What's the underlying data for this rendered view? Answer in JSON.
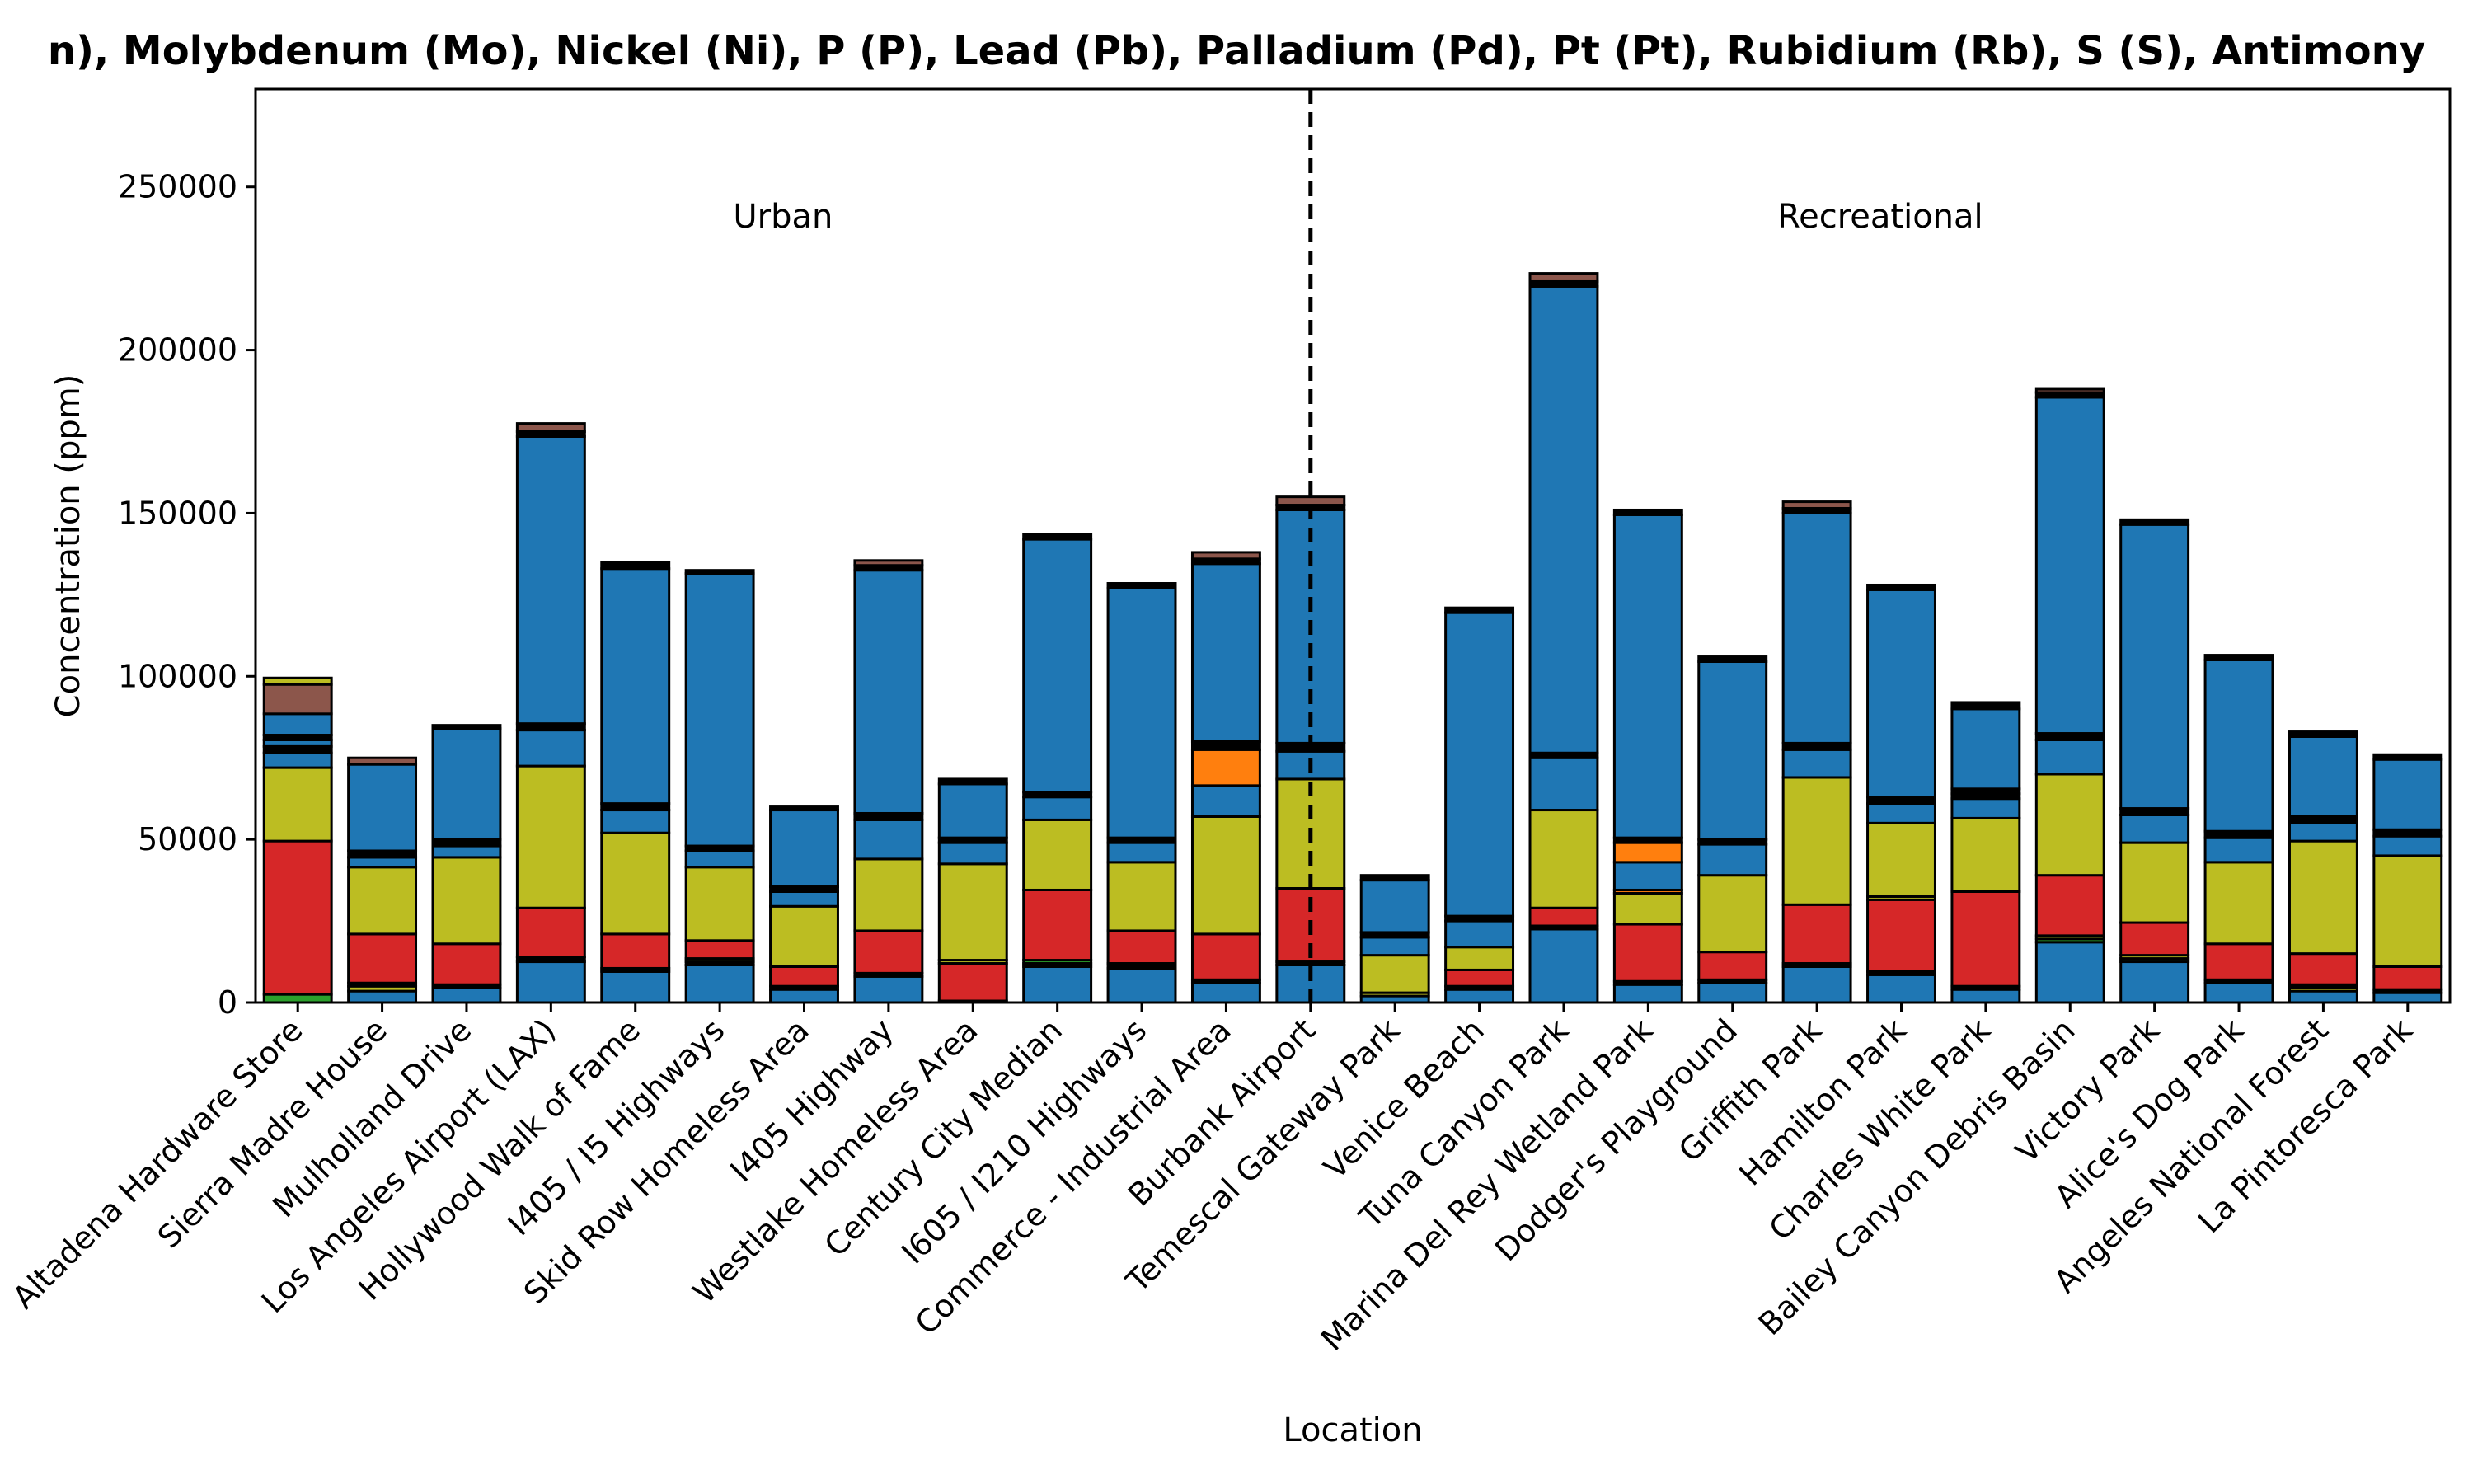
{
  "chart_data": {
    "type": "bar",
    "stacked": true,
    "title": "n), Molybdenum (Mo), Nickel (Ni), P (P), Lead (Pb), Palladium (Pd), Pt (Pt), Rubidium (Rb), S (S), Antimony",
    "xlabel": "Location",
    "ylabel": "Concentration (ppm)",
    "ylim": [
      0,
      280000
    ],
    "yticks": [
      0,
      50000,
      100000,
      150000,
      200000,
      250000
    ],
    "grid": false,
    "divider_after_index": 11,
    "region_labels": [
      "Urban",
      "Recreational"
    ],
    "colors": {
      "green": "#2ca02c",
      "blue": "#1f77b4",
      "red": "#d62728",
      "olive": "#bcbd22",
      "orange": "#ff7f0e",
      "brown": "#8c564b"
    },
    "categories": [
      "Altadena Hardware Store",
      "Sierra Madre House",
      "Mulholland Drive",
      "Los Angeles Airport (LAX)",
      "Hollywood Walk of Fame",
      "I405 / I5 Highways",
      "Skid Row Homeless Area",
      "I405 Highway",
      "Westlake Homeless Area",
      "Century City Median",
      "I605 / I210 Highways",
      "Commerce - Industrial Area",
      "Burbank Airport",
      "Temescal Gateway Park",
      "Venice Beach",
      "Tuna Canyon Park",
      "Marina Del Rey Wetland Park",
      "Dodger's Playground",
      "Griffith Park",
      "Hamilton Park",
      "Charles White Park",
      "Bailey Canyon Debris Basin",
      "Victory Park",
      "Alice's Dog Park",
      "Angeles National Forest",
      "La Pintoresca Park"
    ],
    "stacks": [
      [
        [
          "green",
          2500
        ],
        [
          "red",
          47000
        ],
        [
          "olive",
          22500
        ],
        [
          "blue",
          4500
        ],
        [
          "black",
          2000
        ],
        [
          "blue",
          2000
        ],
        [
          "black",
          1500
        ],
        [
          "blue",
          6500
        ],
        [
          "brown",
          9000
        ],
        [
          "olive",
          2000
        ]
      ],
      [
        [
          "blue",
          3500
        ],
        [
          "olive",
          1500
        ],
        [
          "black",
          1000
        ],
        [
          "red",
          15000
        ],
        [
          "olive",
          20500
        ],
        [
          "blue",
          3000
        ],
        [
          "black",
          2000
        ],
        [
          "blue",
          26500
        ],
        [
          "brown",
          2000
        ]
      ],
      [
        [
          "blue",
          4500
        ],
        [
          "black",
          1000
        ],
        [
          "red",
          12500
        ],
        [
          "olive",
          26500
        ],
        [
          "blue",
          3500
        ],
        [
          "black",
          2000
        ],
        [
          "blue",
          34000
        ],
        [
          "black",
          1000
        ]
      ],
      [
        [
          "blue",
          12500
        ],
        [
          "black",
          1500
        ],
        [
          "red",
          15000
        ],
        [
          "olive",
          43500
        ],
        [
          "blue",
          11000
        ],
        [
          "black",
          2000
        ],
        [
          "blue",
          88000
        ],
        [
          "black",
          1500
        ],
        [
          "brown",
          2500
        ]
      ],
      [
        [
          "blue",
          9500
        ],
        [
          "black",
          1000
        ],
        [
          "red",
          10500
        ],
        [
          "olive",
          31000
        ],
        [
          "blue",
          7000
        ],
        [
          "black",
          2000
        ],
        [
          "blue",
          72000
        ],
        [
          "black",
          2000
        ]
      ],
      [
        [
          "blue",
          11500
        ],
        [
          "black",
          1000
        ],
        [
          "olive",
          1000
        ],
        [
          "red",
          5500
        ],
        [
          "olive",
          22500
        ],
        [
          "blue",
          5000
        ],
        [
          "black",
          1500
        ],
        [
          "blue",
          83500
        ],
        [
          "black",
          1000
        ]
      ],
      [
        [
          "blue",
          4000
        ],
        [
          "black",
          1000
        ],
        [
          "red",
          6000
        ],
        [
          "olive",
          18500
        ],
        [
          "blue",
          4500
        ],
        [
          "black",
          1500
        ],
        [
          "blue",
          23500
        ],
        [
          "black",
          1000
        ]
      ],
      [
        [
          "blue",
          8000
        ],
        [
          "black",
          1000
        ],
        [
          "red",
          13000
        ],
        [
          "olive",
          22000
        ],
        [
          "blue",
          12000
        ],
        [
          "black",
          2000
        ],
        [
          "blue",
          74500
        ],
        [
          "black",
          1500
        ],
        [
          "brown",
          1500
        ]
      ],
      [
        [
          "black",
          500
        ],
        [
          "red",
          11500
        ],
        [
          "olive",
          1000
        ],
        [
          "olive",
          29500
        ],
        [
          "blue",
          6500
        ],
        [
          "black",
          1500
        ],
        [
          "blue",
          16500
        ],
        [
          "black",
          1500
        ]
      ],
      [
        [
          "blue",
          11000
        ],
        [
          "black",
          1000
        ],
        [
          "green",
          1000
        ],
        [
          "red",
          21500
        ],
        [
          "olive",
          21500
        ],
        [
          "blue",
          7000
        ],
        [
          "black",
          1500
        ],
        [
          "blue",
          77500
        ],
        [
          "black",
          1500
        ]
      ],
      [
        [
          "blue",
          10500
        ],
        [
          "black",
          1500
        ],
        [
          "red",
          10000
        ],
        [
          "olive",
          21000
        ],
        [
          "blue",
          6000
        ],
        [
          "black",
          1500
        ],
        [
          "blue",
          76500
        ],
        [
          "black",
          1500
        ]
      ],
      [
        [
          "blue",
          6000
        ],
        [
          "black",
          1000
        ],
        [
          "red",
          14000
        ],
        [
          "olive",
          36000
        ],
        [
          "blue",
          9500
        ],
        [
          "orange",
          11000
        ],
        [
          "black",
          2500
        ],
        [
          "blue",
          54500
        ],
        [
          "black",
          1500
        ],
        [
          "brown",
          2000
        ]
      ],
      [
        [
          "blue",
          11500
        ],
        [
          "black",
          1000
        ],
        [
          "red",
          22500
        ],
        [
          "olive",
          33500
        ],
        [
          "blue",
          8500
        ],
        [
          "black",
          2500
        ],
        [
          "blue",
          71500
        ],
        [
          "black",
          1500
        ],
        [
          "brown",
          2500
        ]
      ],
      [
        [
          "blue",
          2000
        ],
        [
          "olive",
          1000
        ],
        [
          "olive",
          11500
        ],
        [
          "blue",
          5500
        ],
        [
          "black",
          1500
        ],
        [
          "blue",
          16000
        ],
        [
          "black",
          1500
        ]
      ],
      [
        [
          "blue",
          4000
        ],
        [
          "black",
          1000
        ],
        [
          "red",
          5000
        ],
        [
          "olive",
          7000
        ],
        [
          "blue",
          8000
        ],
        [
          "black",
          1500
        ],
        [
          "blue",
          93000
        ],
        [
          "black",
          1500
        ]
      ],
      [
        [
          "blue",
          22500
        ],
        [
          "black",
          1000
        ],
        [
          "red",
          5500
        ],
        [
          "olive",
          30000
        ],
        [
          "blue",
          16000
        ],
        [
          "black",
          1500
        ],
        [
          "blue",
          143000
        ],
        [
          "black",
          1500
        ],
        [
          "brown",
          2500
        ]
      ],
      [
        [
          "blue",
          5500
        ],
        [
          "black",
          1000
        ],
        [
          "red",
          17500
        ],
        [
          "olive",
          9500
        ],
        [
          "orange",
          1000
        ],
        [
          "blue",
          8500
        ],
        [
          "orange",
          6000
        ],
        [
          "black",
          1500
        ],
        [
          "blue",
          99000
        ],
        [
          "black",
          1500
        ]
      ],
      [
        [
          "blue",
          6000
        ],
        [
          "black",
          1000
        ],
        [
          "red",
          8500
        ],
        [
          "olive",
          23500
        ],
        [
          "blue",
          9500
        ],
        [
          "black",
          1500
        ],
        [
          "blue",
          54500
        ],
        [
          "black",
          1500
        ]
      ],
      [
        [
          "blue",
          11000
        ],
        [
          "black",
          1000
        ],
        [
          "red",
          18000
        ],
        [
          "olive",
          39000
        ],
        [
          "blue",
          8500
        ],
        [
          "black",
          2000
        ],
        [
          "blue",
          70500
        ],
        [
          "black",
          1500
        ],
        [
          "brown",
          2000
        ]
      ],
      [
        [
          "blue",
          8500
        ],
        [
          "black",
          1000
        ],
        [
          "red",
          22000
        ],
        [
          "olive",
          1000
        ],
        [
          "olive",
          22500
        ],
        [
          "blue",
          6000
        ],
        [
          "black",
          2000
        ],
        [
          "blue",
          63500
        ],
        [
          "black",
          1500
        ]
      ],
      [
        [
          "blue",
          4000
        ],
        [
          "black",
          1000
        ],
        [
          "red",
          29000
        ],
        [
          "olive",
          22500
        ],
        [
          "blue",
          6000
        ],
        [
          "black",
          1500
        ],
        [
          "black",
          1500
        ],
        [
          "blue",
          24500
        ],
        [
          "black",
          2000
        ]
      ],
      [
        [
          "blue",
          18500
        ],
        [
          "green",
          1000
        ],
        [
          "olive",
          1000
        ],
        [
          "red",
          18500
        ],
        [
          "olive",
          31000
        ],
        [
          "blue",
          10500
        ],
        [
          "black",
          2000
        ],
        [
          "blue",
          103000
        ],
        [
          "black",
          1500
        ],
        [
          "brown",
          1000
        ]
      ],
      [
        [
          "blue",
          12500
        ],
        [
          "green",
          1000
        ],
        [
          "olive",
          1000
        ],
        [
          "red",
          10000
        ],
        [
          "olive",
          24500
        ],
        [
          "blue",
          8500
        ],
        [
          "black",
          2000
        ],
        [
          "blue",
          87000
        ],
        [
          "black",
          1500
        ]
      ],
      [
        [
          "blue",
          6000
        ],
        [
          "black",
          1000
        ],
        [
          "red",
          11000
        ],
        [
          "olive",
          25000
        ],
        [
          "blue",
          7500
        ],
        [
          "black",
          2000
        ],
        [
          "blue",
          52500
        ],
        [
          "black",
          1500
        ]
      ],
      [
        [
          "blue",
          3500
        ],
        [
          "olive",
          1000
        ],
        [
          "black",
          1000
        ],
        [
          "red",
          9500
        ],
        [
          "olive",
          34500
        ],
        [
          "blue",
          5500
        ],
        [
          "black",
          2000
        ],
        [
          "blue",
          24500
        ],
        [
          "black",
          1500
        ]
      ],
      [
        [
          "blue",
          3000
        ],
        [
          "black",
          1000
        ],
        [
          "red",
          7000
        ],
        [
          "olive",
          34000
        ],
        [
          "blue",
          6000
        ],
        [
          "black",
          2000
        ],
        [
          "blue",
          21500
        ],
        [
          "black",
          1500
        ]
      ]
    ]
  }
}
